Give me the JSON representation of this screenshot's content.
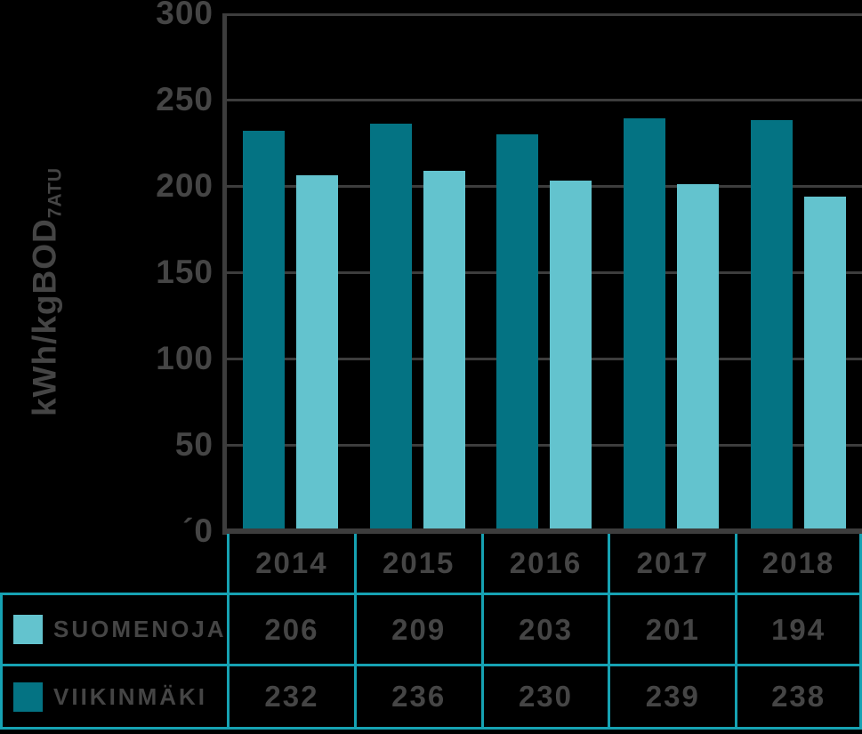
{
  "colors": {
    "background": "#000000",
    "bar_dark": "#047383",
    "bar_light": "#63c3ce",
    "table_border": "#16a2b3",
    "grid": "#3d3d3d",
    "axis": "#3d3d3d",
    "text": "#454545"
  },
  "chart_data": {
    "type": "bar",
    "title": "",
    "ylabel": "kWh/kgBOD7ATU",
    "ylabel_base": "kWh/kgBOD",
    "ylabel_subscript": "7ATU",
    "ylim": [
      0,
      300
    ],
    "ytick_interval": 50,
    "ytick_labels": [
      "300",
      "250",
      "200",
      "150",
      "100",
      "50",
      "´0"
    ],
    "categories": [
      "2014",
      "2015",
      "2016",
      "2017",
      "2018"
    ],
    "series": [
      {
        "name": "VIIKINMÄKI",
        "color_key": "bar_dark",
        "values": [
          232,
          236,
          230,
          239,
          238
        ]
      },
      {
        "name": "SUOMENOJA",
        "color_key": "bar_light",
        "values": [
          206,
          209,
          203,
          201,
          194
        ]
      }
    ],
    "grid": true,
    "legend_position": "table-below"
  },
  "table": {
    "header": [
      "2014",
      "2015",
      "2016",
      "2017",
      "2018"
    ],
    "rows": [
      {
        "label": "SUOMENOJA",
        "swatch_color_key": "bar_light",
        "values": [
          "206",
          "209",
          "203",
          "201",
          "194"
        ]
      },
      {
        "label": "VIIKINMÄKI",
        "swatch_color_key": "bar_dark",
        "values": [
          "232",
          "236",
          "230",
          "239",
          "238"
        ]
      }
    ]
  }
}
